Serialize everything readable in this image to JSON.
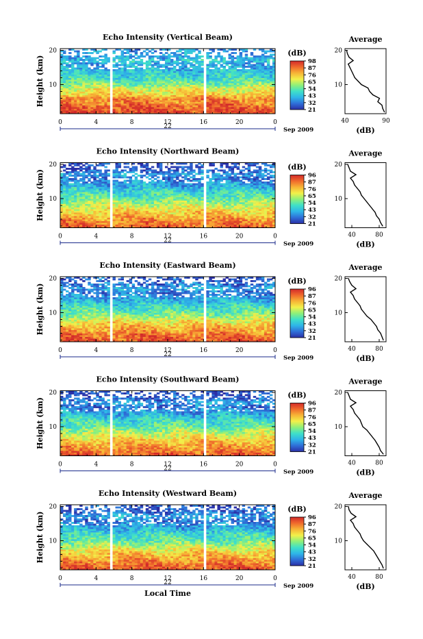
{
  "chart_data": {
    "type": "heatmap",
    "x_label": "Local Time",
    "y_label": "Height (km)",
    "colorbar_unit": "(dB)",
    "colorbar_ticks": [
      "96",
      "87",
      "76",
      "65",
      "54",
      "43",
      "32",
      "21"
    ],
    "x_ticks": [
      "0",
      "4",
      "8",
      "12",
      "16",
      "20",
      "0"
    ],
    "xlim": [
      0,
      24
    ],
    "ylim": [
      1.5,
      20.5
    ],
    "y_ticks": [
      "20",
      "10"
    ],
    "date_day": "22",
    "date_label": "Sep 2009",
    "profile_title": "Average",
    "profile_xlabel": "(dB)",
    "data_gaps_hours": [
      [
        5.4,
        5.8
      ],
      [
        15.9,
        16.3
      ]
    ],
    "panels": [
      {
        "title": "Echo Intensity (Vertical Beam)",
        "colorbar_ticks": [
          "98",
          "87",
          "76",
          "65",
          "54",
          "43",
          "32",
          "21"
        ],
        "profile_xticks": [
          "40",
          "90"
        ],
        "profile_xlim": [
          40,
          90
        ],
        "profile": {
          "height": [
            2,
            3,
            4,
            5,
            6,
            7,
            8,
            9,
            10,
            11,
            12,
            13,
            14,
            15,
            16,
            17,
            18,
            19,
            20
          ],
          "value": [
            88,
            86,
            85,
            80,
            82,
            74,
            70,
            68,
            60,
            56,
            52,
            50,
            48,
            46,
            44,
            50,
            45,
            43,
            42
          ]
        }
      },
      {
        "title": "Echo Intensity (Northward Beam)",
        "colorbar_ticks": [
          "96",
          "87",
          "76",
          "65",
          "54",
          "43",
          "32",
          "21"
        ],
        "profile_xticks": [
          "40",
          "80"
        ],
        "profile_xlim": [
          30,
          90
        ],
        "profile": {
          "height": [
            2,
            3,
            4,
            5,
            6,
            7,
            8,
            9,
            10,
            11,
            12,
            13,
            14,
            15,
            16,
            17,
            18,
            19,
            20
          ],
          "value": [
            85,
            82,
            80,
            76,
            74,
            70,
            66,
            62,
            58,
            54,
            52,
            48,
            44,
            42,
            38,
            46,
            38,
            36,
            34
          ]
        }
      },
      {
        "title": "Echo Intensity (Eastward Beam)",
        "colorbar_ticks": [
          "96",
          "87",
          "76",
          "65",
          "54",
          "43",
          "32",
          "21"
        ],
        "profile_xticks": [
          "40",
          "80"
        ],
        "profile_xlim": [
          30,
          90
        ],
        "profile": {
          "height": [
            2,
            3,
            4,
            5,
            6,
            7,
            8,
            9,
            10,
            11,
            12,
            13,
            14,
            15,
            16,
            17,
            18,
            19,
            20
          ],
          "value": [
            86,
            84,
            82,
            78,
            76,
            72,
            68,
            62,
            58,
            54,
            52,
            48,
            44,
            42,
            38,
            46,
            40,
            37,
            35
          ]
        }
      },
      {
        "title": "Echo Intensity (Southward Beam)",
        "colorbar_ticks": [
          "96",
          "87",
          "76",
          "65",
          "54",
          "43",
          "32",
          "21"
        ],
        "profile_xticks": [
          "40",
          "80"
        ],
        "profile_xlim": [
          30,
          90
        ],
        "profile": {
          "height": [
            2,
            3,
            4,
            5,
            6,
            7,
            8,
            9,
            10,
            11,
            12,
            13,
            14,
            15,
            16,
            17,
            18,
            19,
            20
          ],
          "value": [
            86,
            82,
            80,
            77,
            74,
            70,
            66,
            62,
            56,
            54,
            52,
            48,
            44,
            42,
            38,
            46,
            38,
            36,
            34
          ]
        }
      },
      {
        "title": "Echo Intensity (Westward Beam)",
        "colorbar_ticks": [
          "96",
          "87",
          "76",
          "65",
          "54",
          "43",
          "32",
          "21"
        ],
        "profile_xticks": [
          "40",
          "80"
        ],
        "profile_xlim": [
          30,
          90
        ],
        "profile": {
          "height": [
            2,
            3,
            4,
            5,
            6,
            7,
            8,
            9,
            10,
            11,
            12,
            13,
            14,
            15,
            16,
            17,
            18,
            19,
            20
          ],
          "value": [
            86,
            84,
            81,
            78,
            75,
            72,
            67,
            62,
            57,
            54,
            52,
            48,
            44,
            42,
            38,
            46,
            39,
            36,
            35
          ]
        }
      }
    ]
  },
  "colormap": [
    "#2b2fa6",
    "#2f6fd8",
    "#2fb6e8",
    "#3fe0c8",
    "#8ef07a",
    "#f2f04a",
    "#f7b436",
    "#f06a2c",
    "#d22a2a"
  ]
}
